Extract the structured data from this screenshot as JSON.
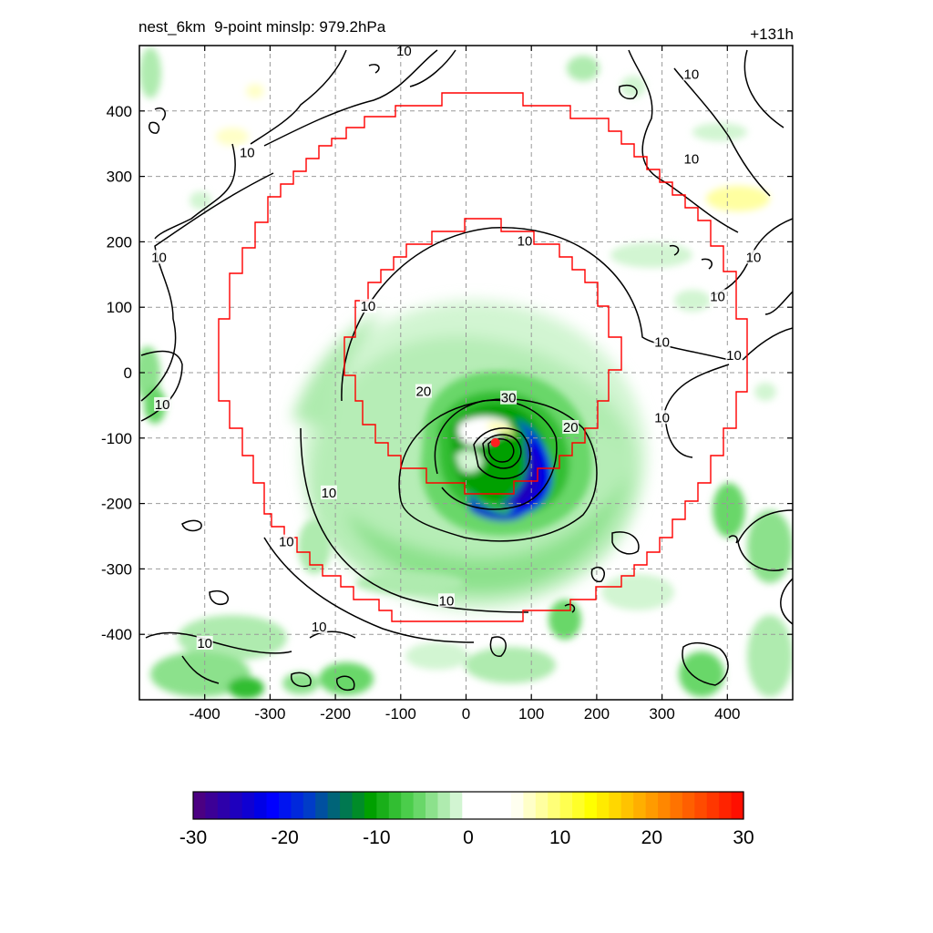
{
  "title": "nest_6km  9-point minslp: 979.2hPa",
  "forecast_hour": "+131h",
  "chart_data": {
    "type": "contour",
    "x_ticks": [
      -400,
      -300,
      -200,
      -100,
      0,
      100,
      200,
      300,
      400
    ],
    "y_ticks": [
      400,
      300,
      200,
      100,
      0,
      -100,
      -200,
      -300,
      -400
    ],
    "xlim": [
      -500,
      500
    ],
    "ylim": [
      -500,
      500
    ],
    "grid": true,
    "contour_levels": [
      10,
      20,
      30
    ],
    "contour_labels": [
      {
        "text": "10",
        "x": -95,
        "y": 490
      },
      {
        "text": "10",
        "x": 345,
        "y": 455
      },
      {
        "text": "10",
        "x": -335,
        "y": 335
      },
      {
        "text": "10",
        "x": 345,
        "y": 325
      },
      {
        "text": "10",
        "x": -470,
        "y": 175
      },
      {
        "text": "10",
        "x": 90,
        "y": 200
      },
      {
        "text": "10",
        "x": 440,
        "y": 175
      },
      {
        "text": "10",
        "x": 385,
        "y": 115
      },
      {
        "text": "10",
        "x": -150,
        "y": 100
      },
      {
        "text": "10",
        "x": 300,
        "y": 45
      },
      {
        "text": "10",
        "x": 410,
        "y": 25
      },
      {
        "text": "10",
        "x": -465,
        "y": -50
      },
      {
        "text": "20",
        "x": -65,
        "y": -30
      },
      {
        "text": "30",
        "x": 65,
        "y": -40
      },
      {
        "text": "20",
        "x": 160,
        "y": -85
      },
      {
        "text": "10",
        "x": 300,
        "y": -70
      },
      {
        "text": "10",
        "x": -210,
        "y": -185
      },
      {
        "text": "10",
        "x": -275,
        "y": -260
      },
      {
        "text": "10",
        "x": -30,
        "y": -350
      },
      {
        "text": "10",
        "x": -225,
        "y": -390
      },
      {
        "text": "10",
        "x": -400,
        "y": -415
      }
    ],
    "storm_center": {
      "x": 45,
      "y": -107
    },
    "min_slp": "979.2hPa",
    "colorbar": {
      "ticks": [
        -30,
        -20,
        -10,
        0,
        10,
        20,
        30
      ],
      "min": -30,
      "max": 30,
      "colors": [
        "#4b0082",
        "#3c0096",
        "#2d00aa",
        "#1e00be",
        "#0f00d2",
        "#0000e6",
        "#0000ff",
        "#0014f0",
        "#0028dc",
        "#003cc8",
        "#0050a0",
        "#006478",
        "#007850",
        "#008c28",
        "#00a000",
        "#19af19",
        "#32be32",
        "#4bcd4b",
        "#69d769",
        "#8ce18c",
        "#afebaf",
        "#d2f5d2",
        "#ffffff",
        "#ffffff",
        "#ffffff",
        "#ffffff",
        "#fffff0",
        "#ffffc8",
        "#ffffa0",
        "#ffff78",
        "#ffff50",
        "#ffff28",
        "#ffff00",
        "#ffeb00",
        "#ffd700",
        "#ffc300",
        "#ffaf00",
        "#ff9b00",
        "#ff8700",
        "#ff7300",
        "#ff5f00",
        "#ff4b00",
        "#ff3700",
        "#ff2300",
        "#ff0f00"
      ]
    }
  }
}
